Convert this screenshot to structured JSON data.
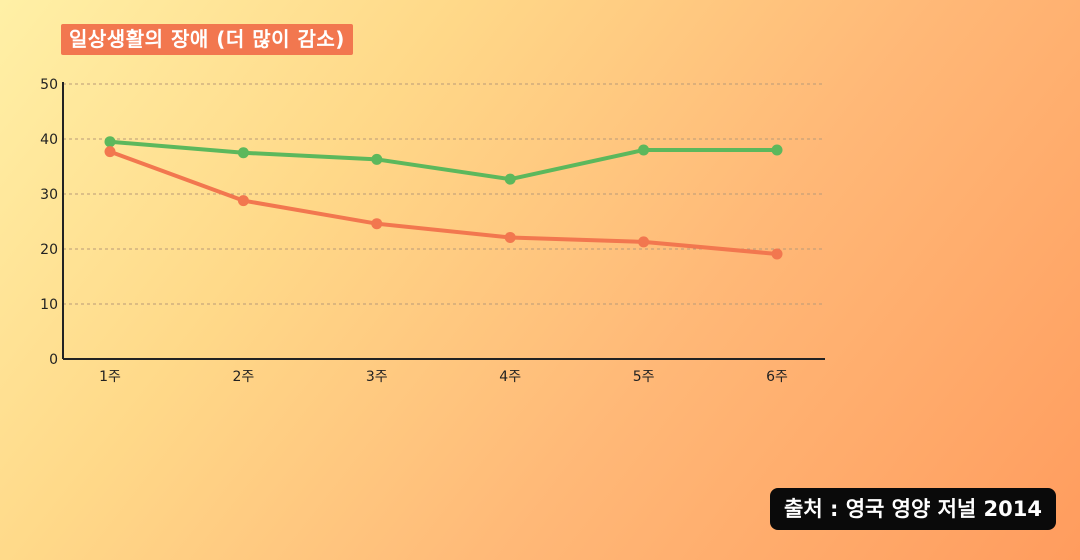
{
  "title": "일상생활의 장애 (더 많이 감소)",
  "source": "출처 : 영국 영양 저널 2014",
  "chart_data": {
    "type": "line",
    "title": "일상생활의 장애 (더 많이 감소)",
    "categories": [
      "1주",
      "2주",
      "3주",
      "4주",
      "5주",
      "6주"
    ],
    "series": [
      {
        "color": "#5cb85c",
        "values": [
          39.5,
          37.5,
          36.3,
          32.7,
          38,
          38
        ]
      },
      {
        "color": "#f2774f",
        "values": [
          37.7,
          28.8,
          24.6,
          22.1,
          21.3,
          19.1
        ]
      }
    ],
    "ylim": [
      0,
      50
    ],
    "yticks": [
      0,
      10,
      20,
      30,
      40,
      50
    ],
    "grid": true,
    "legend": "none"
  }
}
